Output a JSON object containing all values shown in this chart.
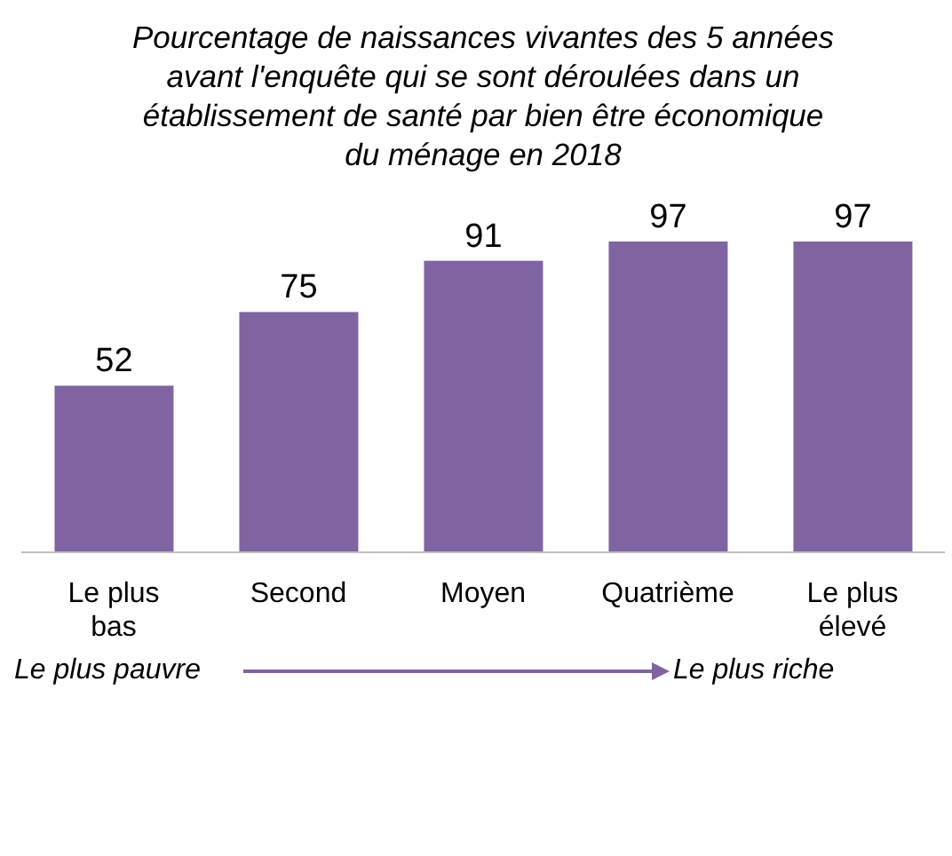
{
  "chart_data": {
    "type": "bar",
    "title": "Pourcentage de naissances vivantes des 5 années avant l'enquête qui se sont déroulées dans un établissement de santé par bien être économique du ménage en 2018",
    "categories": [
      "Le plus bas",
      "Second",
      "Moyen",
      "Quatrième",
      "Le plus élevé"
    ],
    "values": [
      52,
      75,
      91,
      97,
      97
    ],
    "color": "#8064a2",
    "data_labels": true,
    "annotations": [
      "Le plus pauvre",
      "Le plus riche"
    ]
  }
}
